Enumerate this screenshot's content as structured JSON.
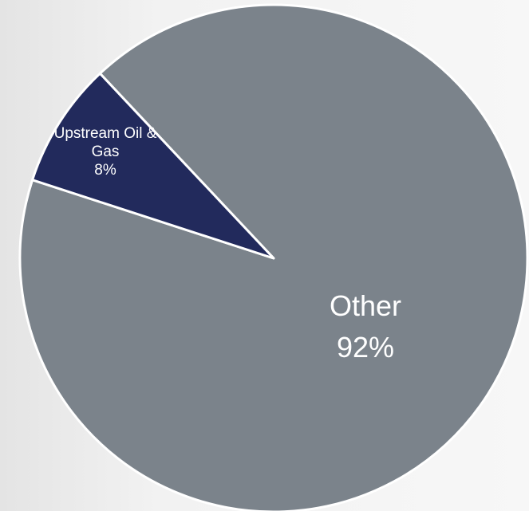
{
  "chart_data": {
    "type": "pie",
    "categories": [
      "Other",
      "Upstream Oil & Gas"
    ],
    "values": [
      92,
      8
    ],
    "value_labels": [
      "92%",
      "8%"
    ],
    "colors": [
      "#7b838b",
      "#222a5c"
    ]
  }
}
